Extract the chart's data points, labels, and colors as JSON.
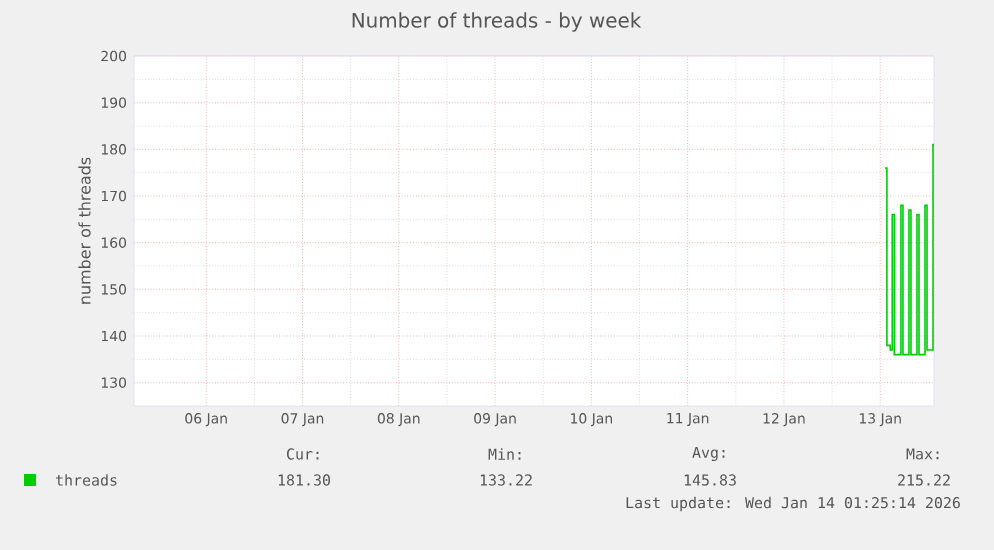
{
  "chart_data": {
    "type": "step",
    "title": "Number of threads - by week",
    "ylabel": "number of threads",
    "xlim": [
      "2026-01-05T18:00",
      "2026-01-14T01:25"
    ],
    "xticks": [
      {
        "value": "2026-01-06T12:00",
        "label": "06 Jan"
      },
      {
        "value": "2026-01-07T12:00",
        "label": "07 Jan"
      },
      {
        "value": "2026-01-08T12:00",
        "label": "08 Jan"
      },
      {
        "value": "2026-01-09T12:00",
        "label": "09 Jan"
      },
      {
        "value": "2026-01-10T12:00",
        "label": "10 Jan"
      },
      {
        "value": "2026-01-11T12:00",
        "label": "11 Jan"
      },
      {
        "value": "2026-01-12T12:00",
        "label": "12 Jan"
      },
      {
        "value": "2026-01-13T12:00",
        "label": "13 Jan"
      }
    ],
    "ylim": [
      125,
      200
    ],
    "yticks": [
      130,
      140,
      150,
      160,
      170,
      180,
      190,
      200
    ],
    "grid": true,
    "legend": "bottom left",
    "x": [
      "2026-01-13T13:10",
      "2026-01-13T13:40",
      "2026-01-13T14:30",
      "2026-01-13T15:00",
      "2026-01-13T15:30",
      "2026-01-13T16:40",
      "2026-01-13T17:10",
      "2026-01-13T17:40",
      "2026-01-13T18:40",
      "2026-01-13T19:10",
      "2026-01-13T19:40",
      "2026-01-13T20:40",
      "2026-01-13T21:10",
      "2026-01-13T21:40",
      "2026-01-13T22:40",
      "2026-01-13T23:10",
      "2026-01-13T23:40",
      "2026-01-14T00:40",
      "2026-01-14T01:10",
      "2026-01-14T01:25"
    ],
    "series": [
      {
        "name": "threads",
        "color": "#00cc00",
        "values": [
          176,
          138,
          137,
          166,
          136,
          136,
          168,
          136,
          136,
          167,
          136,
          136,
          166,
          136,
          136,
          168,
          137,
          137,
          181,
          181
        ]
      }
    ],
    "annotations": [
      "Cur:",
      "181.30",
      "Min:",
      "133.22",
      "Avg:",
      "145.83",
      "Max:",
      "215.22",
      "Last update: Wed Jan 14 01:25:14 2026"
    ]
  }
}
